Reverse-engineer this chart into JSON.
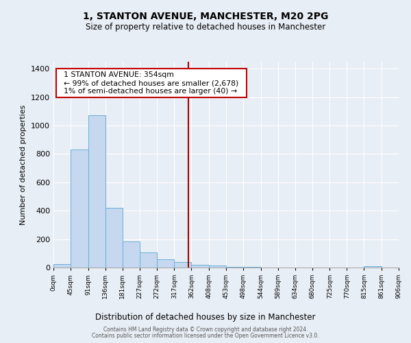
{
  "title": "1, STANTON AVENUE, MANCHESTER, M20 2PG",
  "subtitle": "Size of property relative to detached houses in Manchester",
  "xlabel": "Distribution of detached houses by size in Manchester",
  "ylabel": "Number of detached properties",
  "bar_color": "#c5d8f0",
  "bar_edge_color": "#6aaed6",
  "background_color": "#e8eef5",
  "grid_color": "#ffffff",
  "vline_x": 354,
  "vline_color": "#a00000",
  "annotation_title": "1 STANTON AVENUE: 354sqm",
  "annotation_line1": "← 99% of detached houses are smaller (2,678)",
  "annotation_line2": "1% of semi-detached houses are larger (40) →",
  "annotation_box_color": "#ffffff",
  "annotation_border_color": "#c00000",
  "bin_edges": [
    0,
    45,
    91,
    136,
    181,
    227,
    272,
    317,
    362,
    408,
    453,
    498,
    544,
    589,
    634,
    680,
    725,
    770,
    815,
    861,
    906
  ],
  "bar_heights": [
    25,
    830,
    1075,
    420,
    183,
    105,
    57,
    40,
    20,
    15,
    5,
    3,
    2,
    2,
    1,
    1,
    0,
    0,
    10,
    0
  ],
  "ylim": [
    0,
    1450
  ],
  "yticks": [
    0,
    200,
    400,
    600,
    800,
    1000,
    1200,
    1400
  ],
  "xtick_labels": [
    "0sqm",
    "45sqm",
    "91sqm",
    "136sqm",
    "181sqm",
    "227sqm",
    "272sqm",
    "317sqm",
    "362sqm",
    "408sqm",
    "453sqm",
    "498sqm",
    "544sqm",
    "589sqm",
    "634sqm",
    "680sqm",
    "725sqm",
    "770sqm",
    "815sqm",
    "861sqm",
    "906sqm"
  ],
  "footer1": "Contains HM Land Registry data © Crown copyright and database right 2024.",
  "footer2": "Contains public sector information licensed under the Open Government Licence v3.0."
}
